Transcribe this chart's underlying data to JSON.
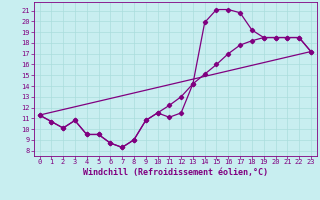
{
  "xlabel": "Windchill (Refroidissement éolien,°C)",
  "bg_color": "#c8eef0",
  "line_color": "#800080",
  "xlim": [
    -0.5,
    23.5
  ],
  "ylim": [
    7.5,
    21.8
  ],
  "xticks": [
    0,
    1,
    2,
    3,
    4,
    5,
    6,
    7,
    8,
    9,
    10,
    11,
    12,
    13,
    14,
    15,
    16,
    17,
    18,
    19,
    20,
    21,
    22,
    23
  ],
  "yticks": [
    8,
    9,
    10,
    11,
    12,
    13,
    14,
    15,
    16,
    17,
    18,
    19,
    20,
    21
  ],
  "line1_x": [
    0,
    1,
    2,
    3,
    4,
    5,
    6,
    7,
    8,
    9,
    10,
    11,
    12,
    13,
    14,
    15,
    16,
    17,
    18,
    19,
    20,
    21,
    22,
    23
  ],
  "line1_y": [
    11.3,
    10.7,
    10.1,
    10.8,
    9.5,
    9.5,
    8.7,
    8.3,
    9.0,
    10.8,
    11.5,
    11.1,
    11.5,
    14.2,
    19.9,
    21.1,
    21.1,
    20.8,
    19.2,
    18.5,
    18.5,
    18.5,
    18.5,
    17.2
  ],
  "line2_x": [
    0,
    1,
    2,
    3,
    4,
    5,
    6,
    7,
    8,
    9,
    10,
    11,
    12,
    13,
    14,
    15,
    16,
    17,
    18,
    19,
    20,
    21,
    22,
    23
  ],
  "line2_y": [
    11.3,
    10.7,
    10.1,
    10.8,
    9.5,
    9.5,
    8.7,
    8.3,
    9.0,
    10.8,
    11.5,
    12.2,
    13.0,
    14.2,
    15.1,
    16.0,
    17.0,
    17.8,
    18.2,
    18.5,
    18.5,
    18.5,
    18.5,
    17.2
  ],
  "line3_x": [
    0,
    23
  ],
  "line3_y": [
    11.3,
    17.2
  ],
  "marker": "D",
  "marker_size": 2.2,
  "line_width": 0.9,
  "font_color": "#800080",
  "grid_color": "#aadddd",
  "tick_fontsize": 5.0,
  "label_fontsize": 6.0
}
